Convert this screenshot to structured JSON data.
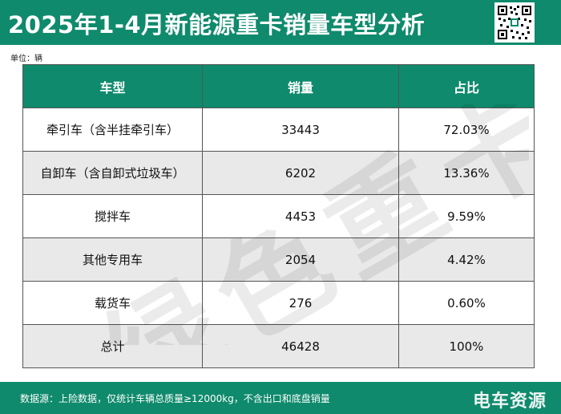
{
  "header": {
    "title": "2025年1-4月新能源重卡销量车型分析"
  },
  "unit_label": "单位：辆",
  "table": {
    "columns": [
      "车型",
      "销量",
      "占比"
    ],
    "rows": [
      [
        "牵引车（含半挂牵引车）",
        "33443",
        "72.03%"
      ],
      [
        "自卸车（含自卸式垃圾车）",
        "6202",
        "13.36%"
      ],
      [
        "搅拌车",
        "4453",
        "9.59%"
      ],
      [
        "其他专用车",
        "2054",
        "4.42%"
      ],
      [
        "载货车",
        "276",
        "0.60%"
      ],
      [
        "总计",
        "46428",
        "100%"
      ]
    ]
  },
  "watermark_text": "绿色重卡",
  "footer": {
    "note": "数据源：上险数据，仅统计车辆总质量≥12000kg，不含出口和底盘销量",
    "logo_text": "电车资源"
  },
  "colors": {
    "brand_green": "#0f8a6c",
    "row_alt": "#e9e9e9"
  }
}
